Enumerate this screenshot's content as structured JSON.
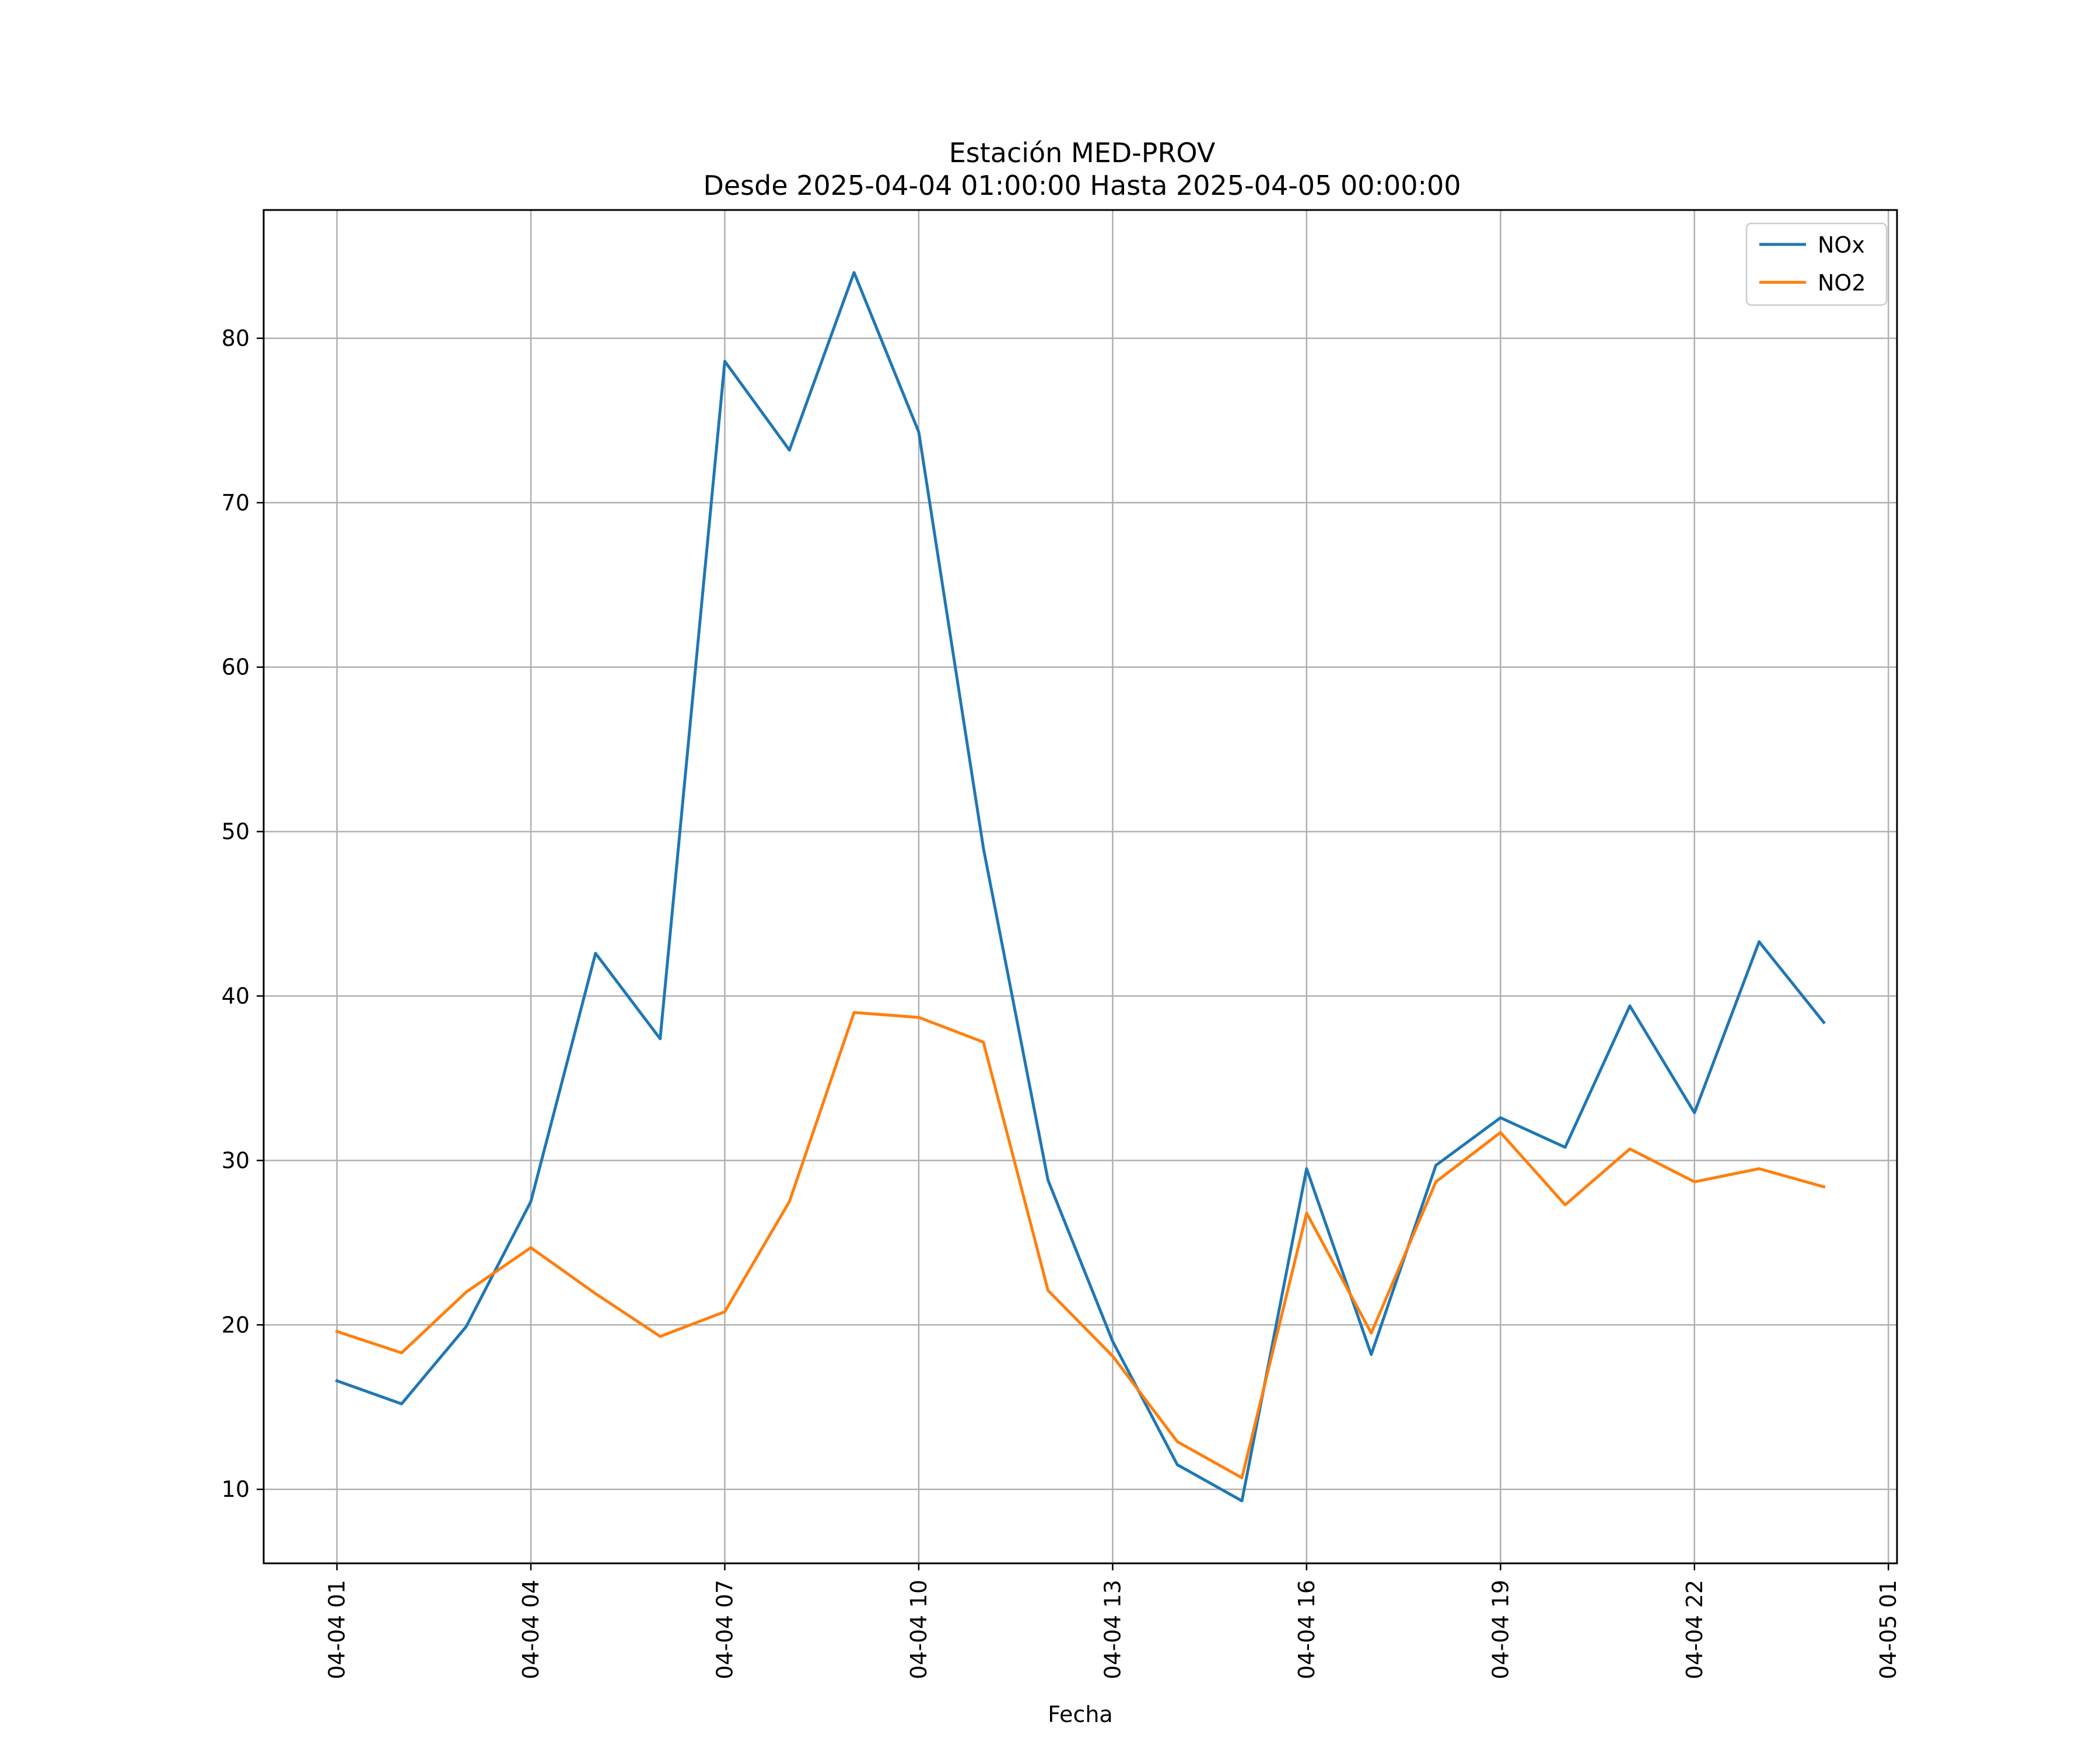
{
  "chart_data": {
    "type": "line",
    "title": "Estación MED-PROV",
    "subtitle": "Desde 2025-04-04 01:00:00 Hasta 2025-04-05 00:00:00",
    "xlabel": "Fecha",
    "ylabel": "",
    "x": [
      "2025-04-04 01:00",
      "2025-04-04 02:00",
      "2025-04-04 03:00",
      "2025-04-04 04:00",
      "2025-04-04 05:00",
      "2025-04-04 06:00",
      "2025-04-04 07:00",
      "2025-04-04 08:00",
      "2025-04-04 09:00",
      "2025-04-04 10:00",
      "2025-04-04 11:00",
      "2025-04-04 12:00",
      "2025-04-04 13:00",
      "2025-04-04 14:00",
      "2025-04-04 15:00",
      "2025-04-04 16:00",
      "2025-04-04 17:00",
      "2025-04-04 18:00",
      "2025-04-04 19:00",
      "2025-04-04 20:00",
      "2025-04-04 21:00",
      "2025-04-04 22:00",
      "2025-04-04 23:00",
      "2025-04-05 00:00"
    ],
    "x_ticks": [
      {
        "value": "2025-04-04 01:00",
        "label": "04-04 01"
      },
      {
        "value": "2025-04-04 04:00",
        "label": "04-04 04"
      },
      {
        "value": "2025-04-04 07:00",
        "label": "04-04 07"
      },
      {
        "value": "2025-04-04 10:00",
        "label": "04-04 10"
      },
      {
        "value": "2025-04-04 13:00",
        "label": "04-04 13"
      },
      {
        "value": "2025-04-04 16:00",
        "label": "04-04 16"
      },
      {
        "value": "2025-04-04 19:00",
        "label": "04-04 19"
      },
      {
        "value": "2025-04-04 22:00",
        "label": "04-04 22"
      },
      {
        "value": "2025-04-05 01:00",
        "label": "04-05 01"
      }
    ],
    "xlim": [
      "2025-04-03 23:52",
      "2025-04-05 01:08"
    ],
    "y_ticks": [
      10,
      20,
      30,
      40,
      50,
      60,
      70,
      80
    ],
    "ylim": [
      5.5,
      87.8
    ],
    "grid": true,
    "legend_position": "top-right",
    "series": [
      {
        "name": "NOx",
        "color": "#1f77b4",
        "values": [
          16.6,
          15.2,
          19.9,
          27.5,
          42.6,
          37.4,
          78.6,
          73.2,
          84.0,
          74.3,
          49.0,
          28.8,
          19.0,
          11.5,
          9.3,
          29.5,
          18.2,
          29.7,
          32.6,
          30.8,
          39.4,
          32.9,
          43.3,
          38.4
        ]
      },
      {
        "name": "NO2",
        "color": "#ff7f0e",
        "values": [
          19.6,
          18.3,
          22.0,
          24.7,
          21.9,
          19.3,
          20.8,
          27.5,
          39.0,
          38.7,
          37.2,
          22.1,
          18.1,
          12.9,
          10.7,
          26.8,
          19.5,
          28.7,
          31.7,
          27.3,
          30.7,
          28.7,
          29.5,
          28.4
        ]
      }
    ]
  }
}
